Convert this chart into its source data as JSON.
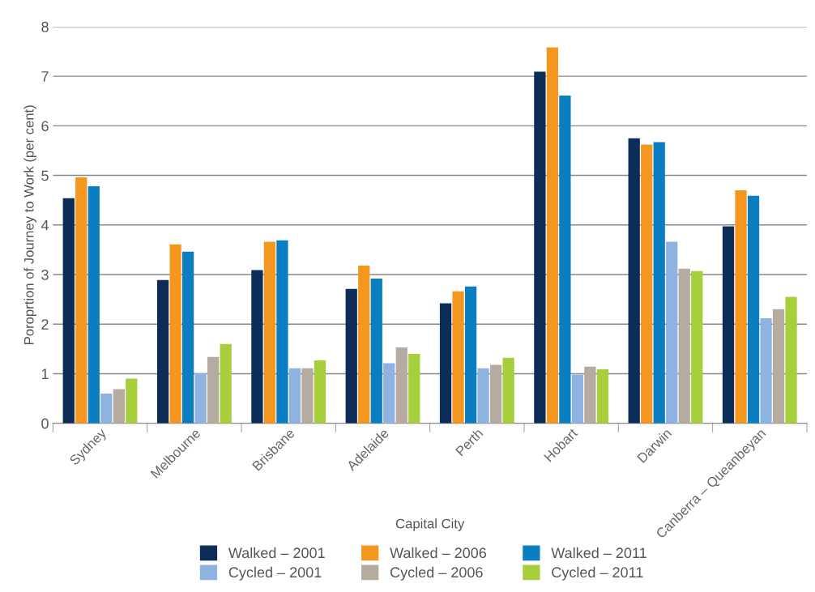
{
  "chart_data": {
    "type": "bar",
    "xlabel": "Capital City",
    "ylabel": "Poroprtion of Journey to Work (per cent)",
    "categories": [
      "Sydney",
      "Melbourne",
      "Brisbane",
      "Adelaide",
      "Perth",
      "Hobart",
      "Darwin",
      "Canberra – Queanbeyan"
    ],
    "series": [
      {
        "name": "Walked – 2001",
        "color": "#0c2d57",
        "values": [
          4.54,
          2.89,
          3.09,
          2.71,
          2.42,
          7.09,
          5.75,
          3.97
        ]
      },
      {
        "name": "Walked – 2006",
        "color": "#f5961e",
        "values": [
          4.96,
          3.61,
          3.66,
          3.18,
          2.66,
          7.58,
          5.62,
          4.7
        ]
      },
      {
        "name": "Walked – 2011",
        "color": "#0b7dc1",
        "values": [
          4.78,
          3.46,
          3.69,
          2.92,
          2.76,
          6.61,
          5.67,
          4.59
        ]
      },
      {
        "name": "Cycled – 2001",
        "color": "#8fb3e0",
        "values": [
          0.6,
          1.01,
          1.11,
          1.21,
          1.11,
          0.98,
          3.66,
          2.12
        ]
      },
      {
        "name": "Cycled – 2006",
        "color": "#b5aba1",
        "values": [
          0.69,
          1.34,
          1.11,
          1.53,
          1.18,
          1.14,
          3.12,
          2.3
        ]
      },
      {
        "name": "Cycled – 2011",
        "color": "#a6cf3b",
        "values": [
          0.9,
          1.6,
          1.27,
          1.4,
          1.32,
          1.09,
          3.07,
          2.55
        ]
      }
    ],
    "ylim": [
      0,
      8
    ],
    "yticks": [
      0,
      1,
      2,
      3,
      4,
      5,
      6,
      7,
      8
    ],
    "grid": "y",
    "legend": "bottom"
  }
}
